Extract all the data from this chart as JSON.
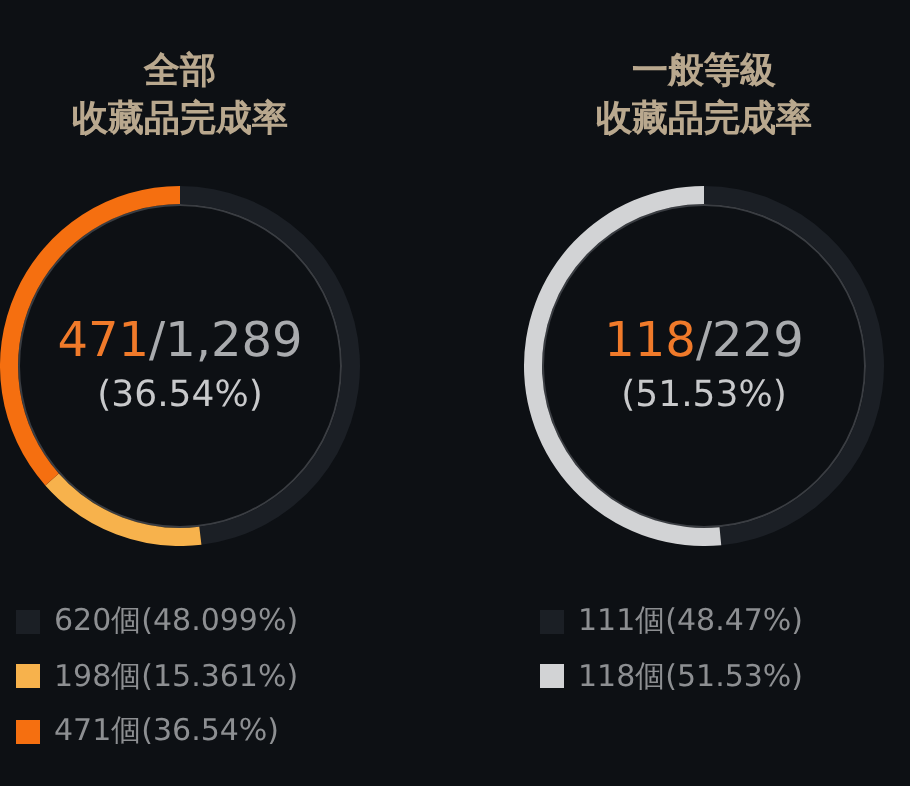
{
  "chart_data": [
    {
      "type": "donut",
      "title": "全部",
      "subtitle": "收藏品完成率",
      "categories": [
        "620個(48.099%)",
        "198個(15.361%)",
        "471個(36.54%)"
      ],
      "values": [
        620,
        198,
        471
      ],
      "colors": [
        "#1b1f25",
        "#f7b24c",
        "#f56f10"
      ],
      "legend": "bottom",
      "annotations": [
        "471/1,289",
        "(36.54%)"
      ]
    },
    {
      "type": "donut",
      "title": "一般等級",
      "subtitle": "收藏品完成率",
      "categories": [
        "111個(48.47%)",
        "118個(51.53%)"
      ],
      "values": [
        111,
        118
      ],
      "colors": [
        "#1b1f25",
        "#d2d3d5"
      ],
      "legend": "bottom",
      "annotations": [
        "118/229",
        "(51.53%)"
      ]
    }
  ]
}
